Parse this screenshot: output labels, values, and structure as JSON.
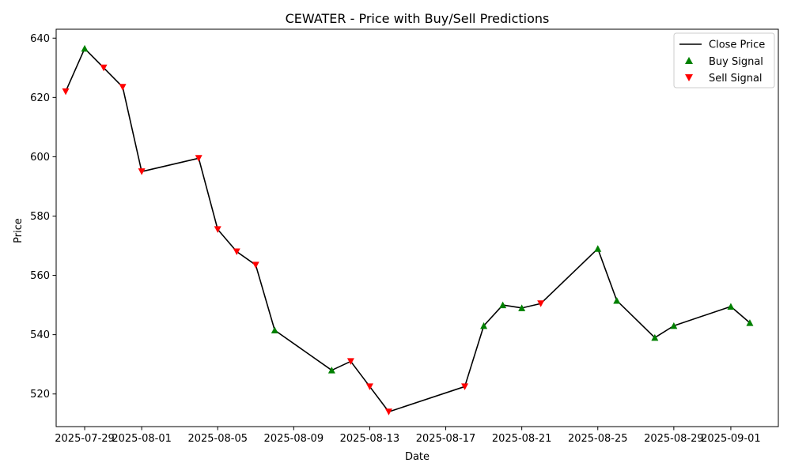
{
  "chart_data": {
    "type": "line",
    "title": "CEWATER - Price with Buy/Sell Predictions",
    "xlabel": "Date",
    "ylabel": "Price",
    "xlim": [
      "2025-07-27T12:00",
      "2025-09-03T12:00"
    ],
    "ylim": [
      509,
      643
    ],
    "x_ticks": [
      "2025-07-29",
      "2025-08-01",
      "2025-08-05",
      "2025-08-09",
      "2025-08-13",
      "2025-08-17",
      "2025-08-21",
      "2025-08-25",
      "2025-08-29",
      "2025-09-01"
    ],
    "y_ticks": [
      520,
      540,
      560,
      580,
      600,
      620,
      640
    ],
    "grid": false,
    "legend_position": "top-right",
    "legend": [
      "Close Price",
      "Buy Signal",
      "Sell Signal"
    ],
    "series": [
      {
        "name": "Close Price",
        "color": "#000000",
        "points": [
          [
            "2025-07-28",
            622
          ],
          [
            "2025-07-29",
            636.5
          ],
          [
            "2025-07-30",
            630
          ],
          [
            "2025-07-31",
            623.5
          ],
          [
            "2025-08-01",
            595
          ],
          [
            "2025-08-04",
            599.5
          ],
          [
            "2025-08-05",
            575.5
          ],
          [
            "2025-08-06",
            568
          ],
          [
            "2025-08-07",
            563.5
          ],
          [
            "2025-08-08",
            541.5
          ],
          [
            "2025-08-11",
            528
          ],
          [
            "2025-08-12",
            531
          ],
          [
            "2025-08-13",
            522.5
          ],
          [
            "2025-08-14",
            514
          ],
          [
            "2025-08-18",
            522.5
          ],
          [
            "2025-08-19",
            543
          ],
          [
            "2025-08-20",
            550
          ],
          [
            "2025-08-21",
            549
          ],
          [
            "2025-08-22",
            550.5
          ],
          [
            "2025-08-25",
            569
          ],
          [
            "2025-08-26",
            551.5
          ],
          [
            "2025-08-28",
            539
          ],
          [
            "2025-08-29",
            543
          ],
          [
            "2025-09-01",
            549.5
          ],
          [
            "2025-09-02",
            544
          ]
        ]
      },
      {
        "name": "Buy Signal",
        "color": "#008000",
        "marker": "triangle-up",
        "points": [
          [
            "2025-07-29",
            636.5
          ],
          [
            "2025-08-08",
            541.5
          ],
          [
            "2025-08-11",
            528
          ],
          [
            "2025-08-19",
            543
          ],
          [
            "2025-08-20",
            550
          ],
          [
            "2025-08-21",
            549
          ],
          [
            "2025-08-25",
            569
          ],
          [
            "2025-08-26",
            551.5
          ],
          [
            "2025-08-28",
            539
          ],
          [
            "2025-08-29",
            543
          ],
          [
            "2025-09-01",
            549.5
          ],
          [
            "2025-09-02",
            544
          ]
        ]
      },
      {
        "name": "Sell Signal",
        "color": "#ff0000",
        "marker": "triangle-down",
        "points": [
          [
            "2025-07-28",
            622
          ],
          [
            "2025-07-30",
            630
          ],
          [
            "2025-07-31",
            623.5
          ],
          [
            "2025-08-01",
            595
          ],
          [
            "2025-08-04",
            599.5
          ],
          [
            "2025-08-05",
            575.5
          ],
          [
            "2025-08-06",
            568
          ],
          [
            "2025-08-07",
            563.5
          ],
          [
            "2025-08-12",
            531
          ],
          [
            "2025-08-13",
            522.5
          ],
          [
            "2025-08-14",
            514
          ],
          [
            "2025-08-18",
            522.5
          ],
          [
            "2025-08-22",
            550.5
          ]
        ]
      }
    ]
  }
}
